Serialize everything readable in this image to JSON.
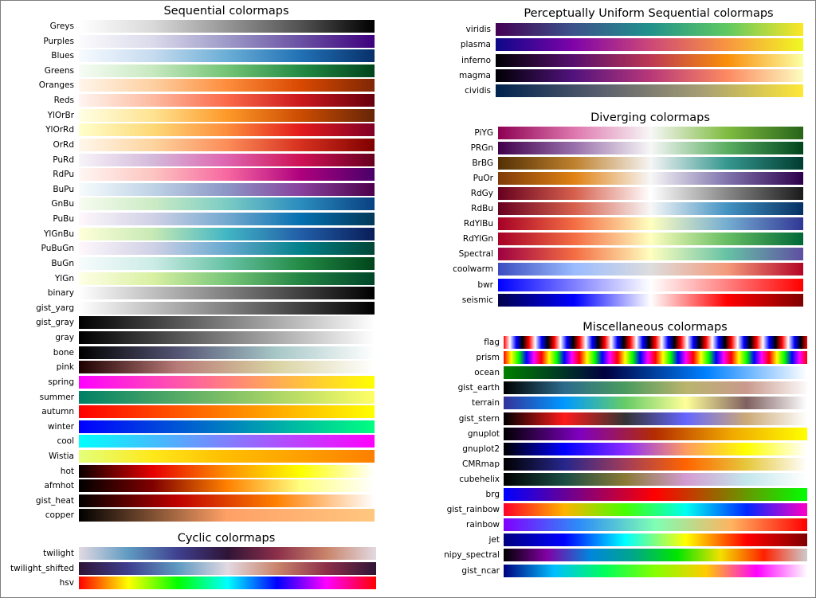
{
  "groups": [
    {
      "title": "Sequential colormaps",
      "colormaps": [
        {
          "name": "Greys",
          "colors": [
            "#ffffff",
            "#d9d9d9",
            "#969696",
            "#525252",
            "#000000"
          ]
        },
        {
          "name": "Purples",
          "colors": [
            "#fcfbfd",
            "#dadaeb",
            "#9e9ac8",
            "#6a51a3",
            "#3f007d"
          ]
        },
        {
          "name": "Blues",
          "colors": [
            "#f7fbff",
            "#c6dbef",
            "#6baed6",
            "#2171b5",
            "#08306b"
          ]
        },
        {
          "name": "Greens",
          "colors": [
            "#f7fcf5",
            "#c7e9c0",
            "#74c476",
            "#238b45",
            "#00441b"
          ]
        },
        {
          "name": "Oranges",
          "colors": [
            "#fff5eb",
            "#fdd0a2",
            "#fd8d3c",
            "#d94801",
            "#7f2704"
          ]
        },
        {
          "name": "Reds",
          "colors": [
            "#fff5f0",
            "#fcbba1",
            "#fb6a4a",
            "#cb181d",
            "#67000d"
          ]
        },
        {
          "name": "YlOrBr",
          "colors": [
            "#ffffe5",
            "#fee391",
            "#fe9929",
            "#cc4c02",
            "#662506"
          ]
        },
        {
          "name": "YlOrRd",
          "colors": [
            "#ffffcc",
            "#fed976",
            "#fd8d3c",
            "#e31a1c",
            "#800026"
          ]
        },
        {
          "name": "OrRd",
          "colors": [
            "#fff7ec",
            "#fdd49e",
            "#fc8d59",
            "#d7301f",
            "#7f0000"
          ]
        },
        {
          "name": "PuRd",
          "colors": [
            "#f7f4f9",
            "#d4b9da",
            "#df65b0",
            "#ce1256",
            "#67001f"
          ]
        },
        {
          "name": "RdPu",
          "colors": [
            "#fff7f3",
            "#fcc5c0",
            "#f768a1",
            "#ae017e",
            "#49006a"
          ]
        },
        {
          "name": "BuPu",
          "colors": [
            "#f7fcfd",
            "#bfd3e6",
            "#8c96c6",
            "#88419d",
            "#4d004b"
          ]
        },
        {
          "name": "GnBu",
          "colors": [
            "#f7fcf0",
            "#ccebc5",
            "#7bccc4",
            "#2b8cbe",
            "#084081"
          ]
        },
        {
          "name": "PuBu",
          "colors": [
            "#fff7fb",
            "#d0d1e6",
            "#74a9cf",
            "#0570b0",
            "#023858"
          ]
        },
        {
          "name": "YlGnBu",
          "colors": [
            "#ffffd9",
            "#c7e9b4",
            "#41b6c4",
            "#225ea8",
            "#081d58"
          ]
        },
        {
          "name": "PuBuGn",
          "colors": [
            "#fff7fb",
            "#d0d1e6",
            "#67a9cf",
            "#02818a",
            "#014636"
          ]
        },
        {
          "name": "BuGn",
          "colors": [
            "#f7fcfd",
            "#ccece6",
            "#66c2a4",
            "#238b45",
            "#00441b"
          ]
        },
        {
          "name": "YlGn",
          "colors": [
            "#ffffe5",
            "#d9f0a3",
            "#78c679",
            "#238443",
            "#004529"
          ]
        },
        {
          "name": "binary",
          "colors": [
            "#ffffff",
            "#000000"
          ]
        },
        {
          "name": "gist_yarg",
          "colors": [
            "#ffffff",
            "#000000"
          ]
        },
        {
          "name": "gist_gray",
          "colors": [
            "#000000",
            "#ffffff"
          ]
        },
        {
          "name": "gray",
          "colors": [
            "#000000",
            "#ffffff"
          ]
        },
        {
          "name": "bone",
          "colors": [
            "#000000",
            "#545474",
            "#a7c7c7",
            "#ffffff"
          ]
        },
        {
          "name": "pink",
          "colors": [
            "#1e0000",
            "#b77b78",
            "#d9d3a3",
            "#ffffff"
          ]
        },
        {
          "name": "spring",
          "colors": [
            "#ff00ff",
            "#ffff00"
          ]
        },
        {
          "name": "summer",
          "colors": [
            "#008066",
            "#ffff66"
          ]
        },
        {
          "name": "autumn",
          "colors": [
            "#ff0000",
            "#ffff00"
          ]
        },
        {
          "name": "winter",
          "colors": [
            "#0000ff",
            "#00ff80"
          ]
        },
        {
          "name": "cool",
          "colors": [
            "#00ffff",
            "#ff00ff"
          ]
        },
        {
          "name": "Wistia",
          "colors": [
            "#e4ff7a",
            "#ffe81a",
            "#ffbd00",
            "#ffa000",
            "#fc7f00"
          ]
        },
        {
          "name": "hot",
          "colors": [
            "#0b0000",
            "#e60000",
            "#ff8f00",
            "#ffff00",
            "#ffffff"
          ]
        },
        {
          "name": "afmhot",
          "colors": [
            "#000000",
            "#800000",
            "#ff8000",
            "#ffff80",
            "#ffffff"
          ]
        },
        {
          "name": "gist_heat",
          "colors": [
            "#000000",
            "#bf0000",
            "#ff8000",
            "#ffffff"
          ]
        },
        {
          "name": "copper",
          "colors": [
            "#000000",
            "#ffa066",
            "#ffc77f"
          ]
        }
      ]
    },
    {
      "title": "Cyclic colormaps",
      "colormaps": [
        {
          "name": "twilight",
          "colors": [
            "#e2d9e2",
            "#5e9ac1",
            "#3f3f8f",
            "#2f1436",
            "#8c2f4a",
            "#c9846a",
            "#e2d9e2"
          ]
        },
        {
          "name": "twilight_shifted",
          "colors": [
            "#2f1436",
            "#3f3f8f",
            "#5e9ac1",
            "#e2d9e2",
            "#c9846a",
            "#8c2f4a",
            "#2f1436"
          ]
        },
        {
          "name": "hsv",
          "colors": [
            "#ff0000",
            "#ffff00",
            "#00ff00",
            "#00ffff",
            "#0000ff",
            "#ff00ff",
            "#ff0000"
          ]
        }
      ]
    },
    {
      "title": "Perceptually Uniform Sequential colormaps",
      "colormaps": [
        {
          "name": "viridis",
          "colors": [
            "#440154",
            "#3b528b",
            "#21918c",
            "#5ec962",
            "#fde725"
          ]
        },
        {
          "name": "plasma",
          "colors": [
            "#0d0887",
            "#7e03a8",
            "#cc4778",
            "#f89540",
            "#f0f921"
          ]
        },
        {
          "name": "inferno",
          "colors": [
            "#000004",
            "#57106e",
            "#bc3754",
            "#f98e09",
            "#fcffa4"
          ]
        },
        {
          "name": "magma",
          "colors": [
            "#000004",
            "#51127c",
            "#b73779",
            "#fc8961",
            "#fcfdbf"
          ]
        },
        {
          "name": "cividis",
          "colors": [
            "#00224e",
            "#575d6d",
            "#a69d75",
            "#fee838"
          ]
        }
      ]
    },
    {
      "title": "Diverging colormaps",
      "colormaps": [
        {
          "name": "PiYG",
          "colors": [
            "#8e0152",
            "#de77ae",
            "#f7f7f7",
            "#7fbc41",
            "#276419"
          ]
        },
        {
          "name": "PRGn",
          "colors": [
            "#40004b",
            "#9970ab",
            "#f7f7f7",
            "#5aae61",
            "#00441b"
          ]
        },
        {
          "name": "BrBG",
          "colors": [
            "#543005",
            "#bf812d",
            "#f5f5f5",
            "#35978f",
            "#003c30"
          ]
        },
        {
          "name": "PuOr",
          "colors": [
            "#7f3b08",
            "#e08214",
            "#f7f7f7",
            "#8073ac",
            "#2d004b"
          ]
        },
        {
          "name": "RdGy",
          "colors": [
            "#67001f",
            "#d6604d",
            "#ffffff",
            "#878787",
            "#1a1a1a"
          ]
        },
        {
          "name": "RdBu",
          "colors": [
            "#67001f",
            "#d6604d",
            "#f7f7f7",
            "#4393c3",
            "#053061"
          ]
        },
        {
          "name": "RdYlBu",
          "colors": [
            "#a50026",
            "#f46d43",
            "#ffffbf",
            "#74add1",
            "#313695"
          ]
        },
        {
          "name": "RdYlGn",
          "colors": [
            "#a50026",
            "#f46d43",
            "#ffffbf",
            "#66bd63",
            "#006837"
          ]
        },
        {
          "name": "Spectral",
          "colors": [
            "#9e0142",
            "#f46d43",
            "#ffffbf",
            "#66c2a5",
            "#5e4fa2"
          ]
        },
        {
          "name": "coolwarm",
          "colors": [
            "#3b4cc0",
            "#9abbff",
            "#dddddd",
            "#f49a7b",
            "#b40426"
          ]
        },
        {
          "name": "bwr",
          "colors": [
            "#0000ff",
            "#ffffff",
            "#ff0000"
          ]
        },
        {
          "name": "seismic",
          "colors": [
            "#00004d",
            "#0000ff",
            "#ffffff",
            "#ff0000",
            "#800000"
          ]
        }
      ]
    },
    {
      "title": "Miscellaneous colormaps",
      "colormaps": [
        {
          "name": "flag",
          "colors": [
            "#ff0000",
            "#ffffff",
            "#0000ff",
            "#000000",
            "#ff0000",
            "#ffffff",
            "#0000ff",
            "#000000",
            "#ff0000",
            "#ffffff",
            "#0000ff",
            "#000000",
            "#ff0000",
            "#ffffff",
            "#0000ff",
            "#000000",
            "#ff0000",
            "#ffffff",
            "#0000ff",
            "#000000",
            "#ff0000",
            "#ffffff",
            "#0000ff",
            "#000000",
            "#ff0000",
            "#ffffff",
            "#0000ff",
            "#000000",
            "#ff0000",
            "#ffffff",
            "#0000ff",
            "#000000",
            "#ff0000",
            "#ffffff",
            "#0000ff",
            "#000000",
            "#ff0000",
            "#ffffff",
            "#0000ff",
            "#000000",
            "#ff0000",
            "#ffffff",
            "#0000ff",
            "#000000",
            "#ff0000",
            "#ffffff",
            "#0000ff",
            "#000000",
            "#ff0000"
          ]
        },
        {
          "name": "prism",
          "colors": [
            "#ff0000",
            "#ffff00",
            "#00ff00",
            "#0000ff",
            "#ff00ff",
            "#ff0000",
            "#ffff00",
            "#00ff00",
            "#0000ff",
            "#ff00ff",
            "#ff0000",
            "#ffff00",
            "#00ff00",
            "#0000ff",
            "#ff00ff",
            "#ff0000",
            "#ffff00",
            "#00ff00",
            "#0000ff",
            "#ff00ff",
            "#ff0000",
            "#ffff00",
            "#00ff00",
            "#0000ff",
            "#ff00ff",
            "#ff0000",
            "#ffff00",
            "#00ff00",
            "#0000ff",
            "#ff00ff",
            "#ff0000",
            "#ffff00",
            "#00ff00",
            "#0000ff",
            "#ff00ff",
            "#ff0000",
            "#ffff00",
            "#00ff00",
            "#0000ff",
            "#ff00ff",
            "#ff0000"
          ]
        },
        {
          "name": "ocean",
          "colors": [
            "#008000",
            "#000040",
            "#0080ff",
            "#ffffff"
          ]
        },
        {
          "name": "gist_earth",
          "colors": [
            "#000000",
            "#2c6b8c",
            "#4a9b5e",
            "#b9b46d",
            "#c99a8d",
            "#fdfbfb"
          ]
        },
        {
          "name": "terrain",
          "colors": [
            "#333399",
            "#0099ff",
            "#66cc66",
            "#ffff99",
            "#806060",
            "#ffffff"
          ]
        },
        {
          "name": "gist_stern",
          "colors": [
            "#000000",
            "#ff1a1a",
            "#333333",
            "#6666ff",
            "#ccaa77",
            "#ffffff"
          ]
        },
        {
          "name": "gnuplot",
          "colors": [
            "#000000",
            "#7f00c0",
            "#b42d00",
            "#f0a800",
            "#ffff00"
          ]
        },
        {
          "name": "gnuplot2",
          "colors": [
            "#000000",
            "#0000ff",
            "#8c2cff",
            "#ff9b5f",
            "#ffff00",
            "#ffffff"
          ]
        },
        {
          "name": "CMRmap",
          "colors": [
            "#000000",
            "#26268c",
            "#a03c5a",
            "#ff6400",
            "#e6c83c",
            "#ffffff"
          ]
        },
        {
          "name": "cubehelix",
          "colors": [
            "#000000",
            "#1a4d45",
            "#8a7a35",
            "#d39bd0",
            "#c4e7ec",
            "#ffffff"
          ]
        },
        {
          "name": "brg",
          "colors": [
            "#0000ff",
            "#ff0000",
            "#00ff00"
          ]
        },
        {
          "name": "gist_rainbow",
          "colors": [
            "#ff0029",
            "#ffb300",
            "#46ff00",
            "#00fff0",
            "#0028ff",
            "#ff00c6"
          ]
        },
        {
          "name": "rainbow",
          "colors": [
            "#8000ff",
            "#2d8df8",
            "#7fffb3",
            "#ffb360",
            "#ff0000"
          ]
        },
        {
          "name": "jet",
          "colors": [
            "#00007f",
            "#0000ff",
            "#00ffff",
            "#ffff00",
            "#ff0000",
            "#7f0000"
          ]
        },
        {
          "name": "nipy_spectral",
          "colors": [
            "#000000",
            "#8200a5",
            "#0086dd",
            "#00a787",
            "#00e600",
            "#f2e000",
            "#ff2000",
            "#cccccc"
          ]
        },
        {
          "name": "gist_ncar",
          "colors": [
            "#000080",
            "#00bfff",
            "#00ff5a",
            "#86ff00",
            "#ffcc00",
            "#ff00ff",
            "#fefefe"
          ]
        }
      ]
    }
  ]
}
